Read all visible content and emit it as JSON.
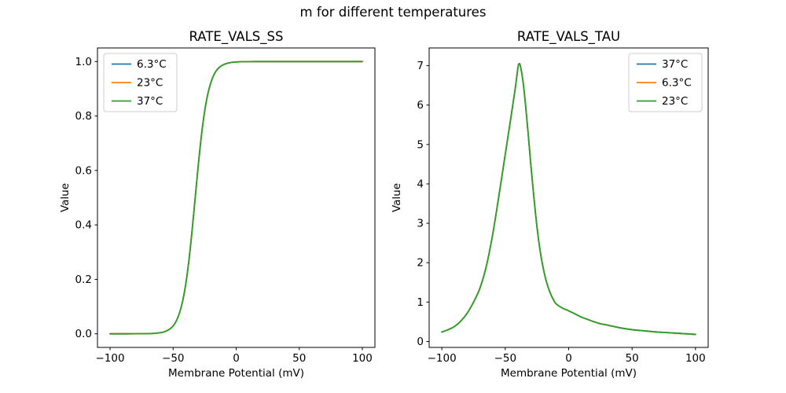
{
  "figure": {
    "suptitle": "m for different temperatures",
    "background_color": "#ffffff"
  },
  "chart_data": [
    {
      "type": "line",
      "title": "RATE_VALS_SS",
      "xlabel": "Membrane Potential (mV)",
      "ylabel": "Value",
      "xlim": [
        -110,
        110
      ],
      "ylim": [
        -0.05,
        1.05
      ],
      "xticks": [
        -100,
        -50,
        0,
        50,
        100
      ],
      "xtick_labels": [
        "−100",
        "−50",
        "0",
        "50",
        "100"
      ],
      "yticks": [
        0,
        0.2,
        0.4,
        0.6,
        0.8,
        1.0
      ],
      "ytick_labels": [
        "0.0",
        "0.2",
        "0.4",
        "0.6",
        "0.8",
        "1.0"
      ],
      "grid": false,
      "legend": {
        "position": "upper-left",
        "entries": [
          {
            "label": "6.3°C",
            "color": "#1f77b4"
          },
          {
            "label": "23°C",
            "color": "#ff7f0e"
          },
          {
            "label": "37°C",
            "color": "#2ca02c"
          }
        ]
      },
      "series_overlap": true,
      "note": "Sigmoidal steady-state activation curve; the three temperature series coincide exactly, so only the green 37°C trace (drawn last) is visible. Half-activation near −32.5 mV.",
      "x": [
        -100,
        -90,
        -80,
        -70,
        -65,
        -60,
        -57.5,
        -55,
        -52.5,
        -50,
        -47.5,
        -45,
        -42.5,
        -40,
        -37.5,
        -35,
        -32.5,
        -30,
        -27.5,
        -25,
        -22.5,
        -20,
        -17.5,
        -15,
        -12.5,
        -10,
        -7.5,
        -5,
        -2.5,
        0,
        5,
        10,
        20,
        30,
        40,
        50,
        60,
        70,
        80,
        90,
        100
      ],
      "y": [
        0,
        0,
        0.0001,
        0.0006,
        0.0015,
        0.0041,
        0.0067,
        0.011,
        0.018,
        0.029,
        0.047,
        0.076,
        0.119,
        0.182,
        0.269,
        0.378,
        0.5,
        0.622,
        0.731,
        0.818,
        0.881,
        0.924,
        0.953,
        0.971,
        0.982,
        0.989,
        0.993,
        0.996,
        0.9975,
        0.9985,
        0.9994,
        0.9998,
        1,
        1,
        1,
        1,
        1,
        1,
        1,
        1,
        1
      ],
      "series": [
        {
          "name": "6.3°C",
          "color": "#1f77b4"
        },
        {
          "name": "23°C",
          "color": "#ff7f0e"
        },
        {
          "name": "37°C",
          "color": "#2ca02c"
        }
      ]
    },
    {
      "type": "line",
      "title": "RATE_VALS_TAU",
      "xlabel": "Membrane Potential (mV)",
      "ylabel": "Value",
      "xlim": [
        -110,
        110
      ],
      "ylim": [
        -0.15,
        7.45
      ],
      "xticks": [
        -100,
        -50,
        0,
        50,
        100
      ],
      "xtick_labels": [
        "−100",
        "−50",
        "0",
        "50",
        "100"
      ],
      "yticks": [
        0,
        1,
        2,
        3,
        4,
        5,
        6,
        7
      ],
      "ytick_labels": [
        "0",
        "1",
        "2",
        "3",
        "4",
        "5",
        "6",
        "7"
      ],
      "grid": false,
      "legend": {
        "position": "upper-right",
        "entries": [
          {
            "label": "37°C",
            "color": "#1f77b4"
          },
          {
            "label": "6.3°C",
            "color": "#ff7f0e"
          },
          {
            "label": "23°C",
            "color": "#2ca02c"
          }
        ]
      },
      "series_overlap": true,
      "note": "Time-constant curve peaking at about 7.05 near −39 mV; the three temperature series coincide exactly, so only the green 23°C trace (drawn last) is visible.",
      "x": [
        -100,
        -95,
        -90,
        -85,
        -80,
        -75,
        -70,
        -65,
        -60,
        -55,
        -50,
        -45,
        -42,
        -40,
        -39,
        -38,
        -36,
        -34,
        -32,
        -30,
        -28,
        -26,
        -24,
        -22,
        -20,
        -18,
        -16,
        -14,
        -12,
        -10,
        -5,
        0,
        5,
        10,
        15,
        20,
        25,
        30,
        40,
        50,
        60,
        70,
        80,
        90,
        100
      ],
      "y": [
        0.24,
        0.3,
        0.38,
        0.52,
        0.72,
        1.0,
        1.35,
        1.9,
        2.7,
        3.7,
        4.75,
        5.8,
        6.45,
        6.95,
        7.05,
        6.98,
        6.6,
        6.0,
        5.3,
        4.55,
        3.85,
        3.2,
        2.65,
        2.2,
        1.85,
        1.57,
        1.36,
        1.19,
        1.06,
        0.96,
        0.85,
        0.78,
        0.7,
        0.62,
        0.56,
        0.5,
        0.45,
        0.42,
        0.35,
        0.3,
        0.27,
        0.24,
        0.22,
        0.2,
        0.18
      ],
      "series": [
        {
          "name": "37°C",
          "color": "#1f77b4"
        },
        {
          "name": "6.3°C",
          "color": "#ff7f0e"
        },
        {
          "name": "23°C",
          "color": "#2ca02c"
        }
      ]
    }
  ]
}
